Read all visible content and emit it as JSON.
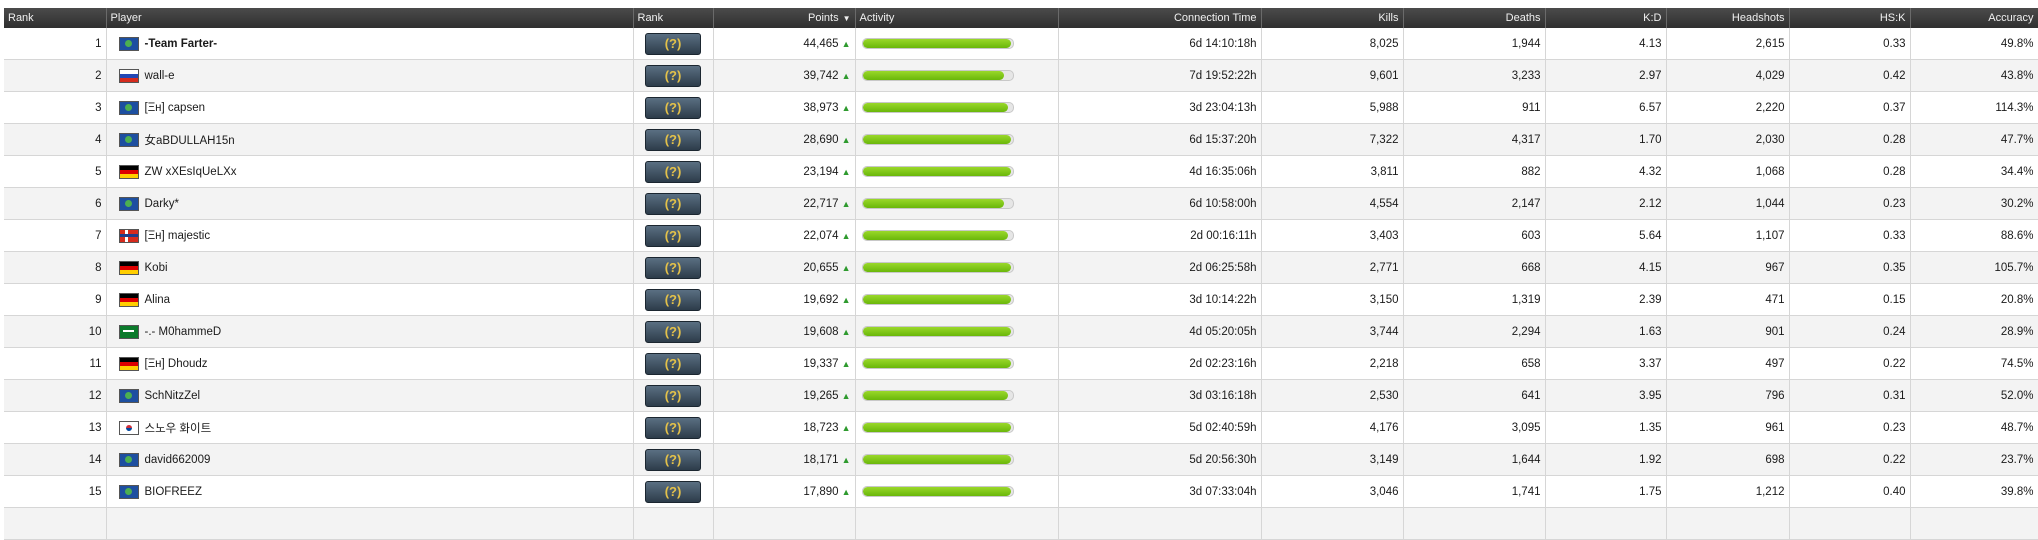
{
  "columns": {
    "rank": "Rank",
    "player": "Player",
    "skill_rank": "Rank",
    "points": "Points",
    "activity": "Activity",
    "connection_time": "Connection Time",
    "kills": "Kills",
    "deaths": "Deaths",
    "kd": "K:D",
    "headshots": "Headshots",
    "hsk": "HS:K",
    "accuracy": "Accuracy"
  },
  "sort_indicator": "▼",
  "rank_badge_text": "(?)",
  "trend_icon": "up-arrow-icon",
  "accent_color": "#7cc417",
  "rows": [
    {
      "rank": "1",
      "flag": "globe",
      "player": "-Team Farter-",
      "bold": true,
      "points": "44,465",
      "activity": 0.99,
      "time": "6d 14:10:18h",
      "kills": "8,025",
      "deaths": "1,944",
      "kd": "4.13",
      "hs": "2,615",
      "hsk": "0.33",
      "acc": "49.8%"
    },
    {
      "rank": "2",
      "flag": "ru",
      "player": "wall-e",
      "bold": false,
      "points": "39,742",
      "activity": 0.94,
      "time": "7d 19:52:22h",
      "kills": "9,601",
      "deaths": "3,233",
      "kd": "2.97",
      "hs": "4,029",
      "hsk": "0.42",
      "acc": "43.8%"
    },
    {
      "rank": "3",
      "flag": "globe",
      "player": "[Ξн] capsen",
      "bold": false,
      "points": "38,973",
      "activity": 0.97,
      "time": "3d 23:04:13h",
      "kills": "5,988",
      "deaths": "911",
      "kd": "6.57",
      "hs": "2,220",
      "hsk": "0.37",
      "acc": "114.3%"
    },
    {
      "rank": "4",
      "flag": "globe",
      "player": "女aBDULLAH15n",
      "bold": false,
      "points": "28,690",
      "activity": 0.99,
      "time": "6d 15:37:20h",
      "kills": "7,322",
      "deaths": "4,317",
      "kd": "1.70",
      "hs": "2,030",
      "hsk": "0.28",
      "acc": "47.7%"
    },
    {
      "rank": "5",
      "flag": "de",
      "player": "ZW xXEsIqUeLXx",
      "bold": false,
      "points": "23,194",
      "activity": 0.99,
      "time": "4d 16:35:06h",
      "kills": "3,811",
      "deaths": "882",
      "kd": "4.32",
      "hs": "1,068",
      "hsk": "0.28",
      "acc": "34.4%"
    },
    {
      "rank": "6",
      "flag": "globe",
      "player": "Darky*",
      "bold": false,
      "points": "22,717",
      "activity": 0.94,
      "time": "6d 10:58:00h",
      "kills": "4,554",
      "deaths": "2,147",
      "kd": "2.12",
      "hs": "1,044",
      "hsk": "0.23",
      "acc": "30.2%"
    },
    {
      "rank": "7",
      "flag": "no",
      "player": "[Ξн] majestic",
      "bold": false,
      "points": "22,074",
      "activity": 0.97,
      "time": "2d 00:16:11h",
      "kills": "3,403",
      "deaths": "603",
      "kd": "5.64",
      "hs": "1,107",
      "hsk": "0.33",
      "acc": "88.6%"
    },
    {
      "rank": "8",
      "flag": "de",
      "player": "Kobi",
      "bold": false,
      "points": "20,655",
      "activity": 0.99,
      "time": "2d 06:25:58h",
      "kills": "2,771",
      "deaths": "668",
      "kd": "4.15",
      "hs": "967",
      "hsk": "0.35",
      "acc": "105.7%"
    },
    {
      "rank": "9",
      "flag": "de",
      "player": "Alina",
      "bold": false,
      "points": "19,692",
      "activity": 0.99,
      "time": "3d 10:14:22h",
      "kills": "3,150",
      "deaths": "1,319",
      "kd": "2.39",
      "hs": "471",
      "hsk": "0.15",
      "acc": "20.8%"
    },
    {
      "rank": "10",
      "flag": "sa",
      "player": "-.- M0hammeD",
      "bold": false,
      "points": "19,608",
      "activity": 0.99,
      "time": "4d 05:20:05h",
      "kills": "3,744",
      "deaths": "2,294",
      "kd": "1.63",
      "hs": "901",
      "hsk": "0.24",
      "acc": "28.9%"
    },
    {
      "rank": "11",
      "flag": "de",
      "player": "[Ξн] Dhoudz",
      "bold": false,
      "points": "19,337",
      "activity": 0.99,
      "time": "2d 02:23:16h",
      "kills": "2,218",
      "deaths": "658",
      "kd": "3.37",
      "hs": "497",
      "hsk": "0.22",
      "acc": "74.5%"
    },
    {
      "rank": "12",
      "flag": "globe",
      "player": "SchNitzZel",
      "bold": false,
      "points": "19,265",
      "activity": 0.97,
      "time": "3d 03:16:18h",
      "kills": "2,530",
      "deaths": "641",
      "kd": "3.95",
      "hs": "796",
      "hsk": "0.31",
      "acc": "52.0%"
    },
    {
      "rank": "13",
      "flag": "kr",
      "player": "스노우 화이트",
      "bold": false,
      "points": "18,723",
      "activity": 0.99,
      "time": "5d 02:40:59h",
      "kills": "4,176",
      "deaths": "3,095",
      "kd": "1.35",
      "hs": "961",
      "hsk": "0.23",
      "acc": "48.7%"
    },
    {
      "rank": "14",
      "flag": "globe",
      "player": "david662009",
      "bold": false,
      "points": "18,171",
      "activity": 0.99,
      "time": "5d 20:56:30h",
      "kills": "3,149",
      "deaths": "1,644",
      "kd": "1.92",
      "hs": "698",
      "hsk": "0.22",
      "acc": "23.7%"
    },
    {
      "rank": "15",
      "flag": "globe",
      "player": "BIOFREEZ",
      "bold": false,
      "points": "17,890",
      "activity": 0.99,
      "time": "3d 07:33:04h",
      "kills": "3,046",
      "deaths": "1,741",
      "kd": "1.75",
      "hs": "1,212",
      "hsk": "0.40",
      "acc": "39.8%"
    }
  ]
}
